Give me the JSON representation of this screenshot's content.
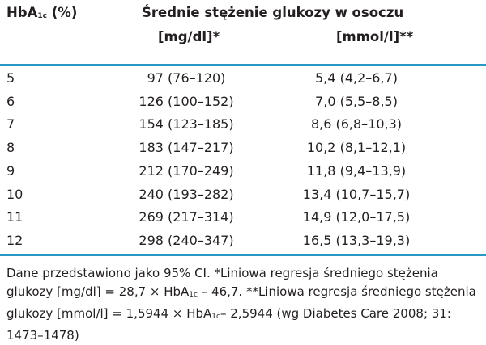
{
  "header": {
    "col1_main": "HbA",
    "col1_sub": "1c",
    "col1_unit": " (%)",
    "group_title": "Średnie stężenie glukozy w osoczu",
    "col2": "[mg/dl]*",
    "col3": "[mmol/l]**"
  },
  "rows": [
    {
      "hba1c": "5",
      "mgdl": "97 (76–120)",
      "mmol": "5,4 (4,2–6,7)"
    },
    {
      "hba1c": "6",
      "mgdl": "126 (100–152)",
      "mmol": "7,0 (5,5–8,5)"
    },
    {
      "hba1c": "7",
      "mgdl": "154 (123–185)",
      "mmol": "8,6 (6,8–10,3)"
    },
    {
      "hba1c": "8",
      "mgdl": "183 (147–217)",
      "mmol": "10,2 (8,1–12,1)"
    },
    {
      "hba1c": "9",
      "mgdl": "212 (170–249)",
      "mmol": "11,8 (9,4–13,9)"
    },
    {
      "hba1c": "10",
      "mgdl": "240 (193–282)",
      "mmol": "13,4 (10,7–15,7)"
    },
    {
      "hba1c": "11",
      "mgdl": "269 (217–314)",
      "mmol": "14,9 (12,0–17,5)"
    },
    {
      "hba1c": "12",
      "mgdl": "298 (240–347)",
      "mmol": "16,5 (13,3–19,3)"
    }
  ],
  "footnote": {
    "p1": "Dane przedstawiono jako 95% CI. *Liniowa regresja średniego stężenia glukozy [mg/dl] = 28,7 × HbA",
    "sub1": "1c",
    "p2": " – 46,7. **Liniowa regresja średniego stężenia glukozy [mmol/l] = 1,5944 × HbA",
    "sub2": "1c",
    "p3": "– 2,5944 (wg Diabetes Care 2008; 31: 1473–1478)"
  },
  "colors": {
    "rule": "#2b97c6",
    "text": "#231f20"
  }
}
